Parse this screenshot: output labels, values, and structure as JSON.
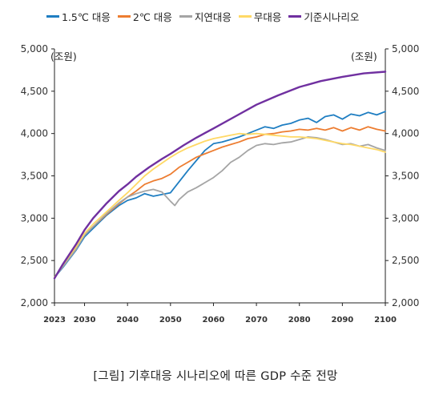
{
  "caption": "[그림] 기후대응 시나리오에 따른 GDP 수준 전망",
  "chart_data": {
    "type": "line",
    "title": "",
    "xlabel": "",
    "ylabel": "(조원)",
    "ylabel_right": "(조원)",
    "ylim": [
      2000,
      5000
    ],
    "xlim": [
      2023,
      2100
    ],
    "yticks": [
      "2,000",
      "2,500",
      "3,000",
      "3,500",
      "4,000",
      "4,500",
      "5,000"
    ],
    "xticks": [
      "2023",
      "2030",
      "2040",
      "2050",
      "2060",
      "2070",
      "2080",
      "2090",
      "2100"
    ],
    "grid": false,
    "legend_position": "top",
    "series": [
      {
        "name": "1.5℃ 대응",
        "color": "#1f7ec2",
        "x": [
          2023,
          2025,
          2028,
          2030,
          2032,
          2035,
          2038,
          2040,
          2042,
          2044,
          2046,
          2048,
          2050,
          2052,
          2054,
          2056,
          2058,
          2060,
          2062,
          2064,
          2066,
          2068,
          2070,
          2072,
          2074,
          2076,
          2078,
          2080,
          2082,
          2084,
          2086,
          2088,
          2090,
          2092,
          2094,
          2096,
          2098,
          2100
        ],
        "values": [
          2300,
          2420,
          2620,
          2780,
          2880,
          3030,
          3150,
          3210,
          3240,
          3290,
          3260,
          3280,
          3300,
          3430,
          3560,
          3680,
          3800,
          3880,
          3900,
          3930,
          3960,
          4000,
          4040,
          4080,
          4060,
          4100,
          4120,
          4160,
          4180,
          4130,
          4200,
          4220,
          4170,
          4230,
          4210,
          4250,
          4220,
          4260
        ]
      },
      {
        "name": "2℃ 대응",
        "color": "#ed7d31",
        "x": [
          2023,
          2025,
          2028,
          2030,
          2032,
          2035,
          2038,
          2040,
          2042,
          2044,
          2046,
          2048,
          2050,
          2052,
          2054,
          2056,
          2058,
          2060,
          2062,
          2064,
          2066,
          2068,
          2070,
          2072,
          2074,
          2076,
          2078,
          2080,
          2082,
          2084,
          2086,
          2088,
          2090,
          2092,
          2094,
          2096,
          2098,
          2100
        ],
        "values": [
          2300,
          2440,
          2640,
          2800,
          2900,
          3040,
          3170,
          3250,
          3320,
          3400,
          3440,
          3470,
          3520,
          3600,
          3660,
          3720,
          3760,
          3800,
          3840,
          3870,
          3900,
          3940,
          3960,
          3990,
          4000,
          4020,
          4030,
          4050,
          4040,
          4060,
          4040,
          4070,
          4030,
          4070,
          4040,
          4080,
          4050,
          4030
        ]
      },
      {
        "name": "지연대응",
        "color": "#a5a5a5",
        "x": [
          2023,
          2025,
          2028,
          2030,
          2032,
          2035,
          2038,
          2040,
          2042,
          2044,
          2046,
          2048,
          2050,
          2051,
          2052,
          2054,
          2056,
          2058,
          2060,
          2062,
          2064,
          2066,
          2068,
          2070,
          2072,
          2074,
          2076,
          2078,
          2080,
          2082,
          2084,
          2086,
          2088,
          2090,
          2092,
          2094,
          2096,
          2098,
          2100
        ],
        "values": [
          2300,
          2430,
          2630,
          2800,
          2900,
          3050,
          3180,
          3250,
          3290,
          3320,
          3340,
          3310,
          3200,
          3150,
          3220,
          3310,
          3360,
          3420,
          3480,
          3560,
          3660,
          3720,
          3800,
          3860,
          3880,
          3870,
          3890,
          3900,
          3930,
          3960,
          3950,
          3930,
          3900,
          3870,
          3880,
          3850,
          3870,
          3830,
          3800
        ]
      },
      {
        "name": "무대응",
        "color": "#ffd966",
        "x": [
          2023,
          2025,
          2028,
          2030,
          2032,
          2035,
          2038,
          2040,
          2042,
          2044,
          2046,
          2048,
          2050,
          2052,
          2054,
          2056,
          2058,
          2060,
          2062,
          2064,
          2066,
          2068,
          2070,
          2072,
          2074,
          2076,
          2078,
          2080,
          2082,
          2084,
          2086,
          2088,
          2090,
          2092,
          2094,
          2096,
          2098,
          2100
        ],
        "values": [
          2300,
          2450,
          2660,
          2820,
          2930,
          3070,
          3210,
          3300,
          3400,
          3500,
          3580,
          3650,
          3720,
          3780,
          3830,
          3870,
          3910,
          3940,
          3960,
          3980,
          4000,
          3990,
          4000,
          3990,
          3980,
          3970,
          3960,
          3960,
          3950,
          3940,
          3920,
          3900,
          3880,
          3870,
          3850,
          3830,
          3810,
          3780
        ]
      },
      {
        "name": "기준시나리오",
        "color": "#7030a0",
        "x": [
          2023,
          2025,
          2028,
          2030,
          2032,
          2035,
          2038,
          2040,
          2042,
          2045,
          2048,
          2050,
          2053,
          2056,
          2060,
          2065,
          2070,
          2075,
          2080,
          2085,
          2090,
          2095,
          2100
        ],
        "values": [
          2290,
          2460,
          2690,
          2860,
          3000,
          3170,
          3320,
          3400,
          3490,
          3600,
          3700,
          3760,
          3860,
          3950,
          4060,
          4200,
          4340,
          4450,
          4550,
          4620,
          4670,
          4710,
          4730
        ]
      }
    ]
  }
}
